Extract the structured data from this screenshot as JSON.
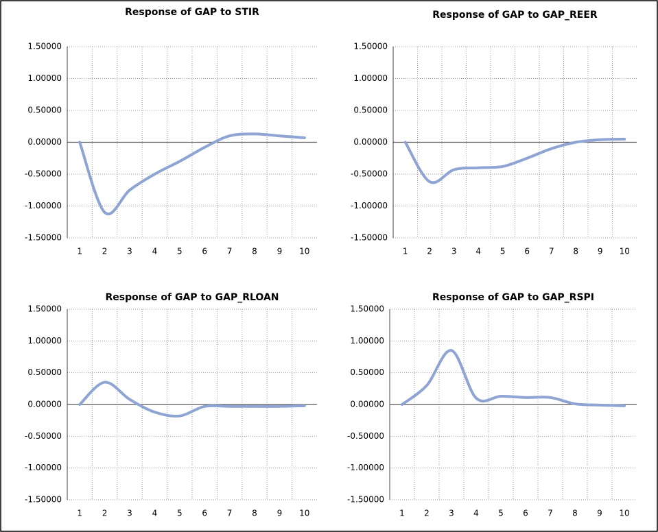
{
  "chart_data": [
    {
      "type": "line",
      "title": "Response of GAP to STIR",
      "categories": [
        "1",
        "2",
        "3",
        "4",
        "5",
        "6",
        "7",
        "8",
        "9",
        "10"
      ],
      "values": [
        0,
        -1.1,
        -0.75,
        -0.5,
        -0.3,
        -0.08,
        0.1,
        0.13,
        0.1,
        0.07
      ],
      "color": "#8ea4d2",
      "ylim": [
        -1.5,
        1.5
      ],
      "yticks": [
        {
          "value": -1.5,
          "label": "-1.50000"
        },
        {
          "value": -1,
          "label": "-1.00000"
        },
        {
          "value": -0.5,
          "label": "-0.50000"
        },
        {
          "value": 0,
          "label": "0.00000"
        },
        {
          "value": 0.5,
          "label": "0.50000"
        },
        {
          "value": 1,
          "label": "1.00000"
        },
        {
          "value": 1.5,
          "label": "1.50000"
        }
      ],
      "grid": true
    },
    {
      "type": "line",
      "title": "Response of GAP to GAP_REER",
      "categories": [
        "1",
        "2",
        "3",
        "4",
        "5",
        "6",
        "7",
        "8",
        "9",
        "10"
      ],
      "values": [
        0,
        -0.62,
        -0.43,
        -0.4,
        -0.38,
        -0.25,
        -0.1,
        0,
        0.04,
        0.05
      ],
      "color": "#8ea4d2",
      "ylim": [
        -1.5,
        1.5
      ],
      "yticks": [
        {
          "value": -1.5,
          "label": "-1.50000"
        },
        {
          "value": -1,
          "label": "-1.00000"
        },
        {
          "value": -0.5,
          "label": "-0.50000"
        },
        {
          "value": 0,
          "label": "0.00000"
        },
        {
          "value": 0.5,
          "label": "0.50000"
        },
        {
          "value": 1,
          "label": "1.00000"
        },
        {
          "value": 1.5,
          "label": "1.50000"
        }
      ],
      "grid": true
    },
    {
      "type": "line",
      "title": "Response of GAP to GAP_RLOAN",
      "categories": [
        "1",
        "2",
        "3",
        "4",
        "5",
        "6",
        "7",
        "8",
        "9",
        "10"
      ],
      "values": [
        0,
        0.35,
        0.08,
        -0.12,
        -0.18,
        -0.03,
        -0.03,
        -0.03,
        -0.03,
        -0.02
      ],
      "color": "#8ea4d2",
      "ylim": [
        -1.5,
        1.5
      ],
      "yticks": [
        {
          "value": -1.5,
          "label": "-1.50000"
        },
        {
          "value": -1,
          "label": "-1.00000"
        },
        {
          "value": -0.5,
          "label": "-0.50000"
        },
        {
          "value": 0,
          "label": "0.00000"
        },
        {
          "value": 0.5,
          "label": "0.50000"
        },
        {
          "value": 1,
          "label": "1.00000"
        },
        {
          "value": 1.5,
          "label": "1.50000"
        }
      ],
      "grid": true
    },
    {
      "type": "line",
      "title": "Response of GAP to GAP_RSPI",
      "categories": [
        "1",
        "2",
        "3",
        "4",
        "5",
        "6",
        "7",
        "8",
        "9",
        "10"
      ],
      "values": [
        0,
        0.3,
        0.85,
        0.1,
        0.13,
        0.11,
        0.11,
        0.01,
        -0.01,
        -0.02
      ],
      "color": "#8ea4d2",
      "ylim": [
        -1.5,
        1.5
      ],
      "yticks": [
        {
          "value": -1.5,
          "label": "-1.50000"
        },
        {
          "value": -1,
          "label": "-1.00000"
        },
        {
          "value": -0.5,
          "label": "-0.50000"
        },
        {
          "value": 0,
          "label": "0.00000"
        },
        {
          "value": 0.5,
          "label": "0.50000"
        },
        {
          "value": 1,
          "label": "1.00000"
        },
        {
          "value": 1.5,
          "label": "1.50000"
        }
      ],
      "grid": true
    }
  ]
}
